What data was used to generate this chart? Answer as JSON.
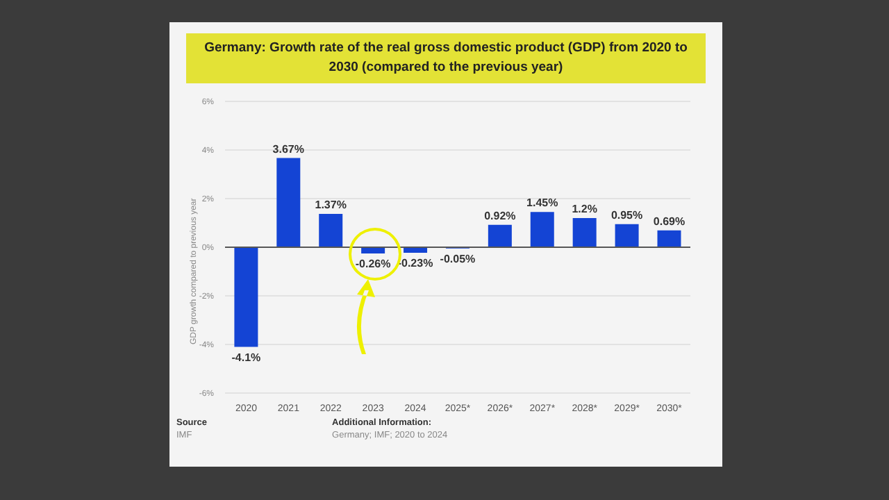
{
  "chart_data": {
    "type": "bar",
    "title": "Germany: Growth rate of the real gross domestic product (GDP) from 2020 to 2030 (compared to the previous year)",
    "ylabel": "GDP growth compared to previous year",
    "categories": [
      "2020",
      "2021",
      "2022",
      "2023",
      "2024",
      "2025*",
      "2026*",
      "2027*",
      "2028*",
      "2029*",
      "2030*"
    ],
    "values": [
      -4.1,
      3.67,
      1.37,
      -0.26,
      -0.23,
      -0.05,
      0.92,
      1.45,
      1.2,
      0.95,
      0.69
    ],
    "value_labels": [
      "-4.1%",
      "3.67%",
      "1.37%",
      "-0.26%",
      "-0.23%",
      "-0.05%",
      "0.92%",
      "1.45%",
      "1.2%",
      "0.95%",
      "0.69%"
    ],
    "color": "#1444d4",
    "grid": "y",
    "ylim": [
      -6,
      6
    ],
    "yticks": [
      {
        "value": -6,
        "label": "-6%"
      },
      {
        "value": -4,
        "label": "-4%"
      },
      {
        "value": -2,
        "label": "-2%"
      },
      {
        "value": 0,
        "label": "0%"
      },
      {
        "value": 2,
        "label": "2%"
      },
      {
        "value": 4,
        "label": "4%"
      },
      {
        "value": 6,
        "label": "6%"
      }
    ],
    "annotations": [
      "Source",
      "IMF",
      "Additional Information:",
      "Germany; IMF; 2020 to 2024"
    ]
  }
}
